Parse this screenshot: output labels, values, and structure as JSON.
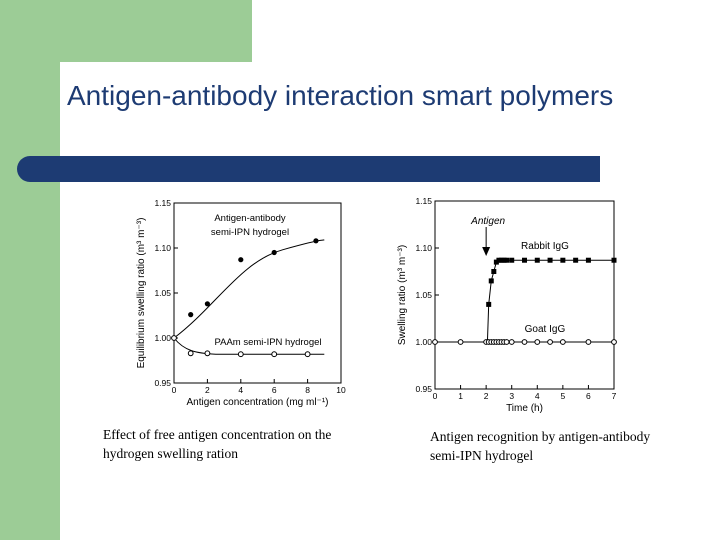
{
  "slide": {
    "title": "Antigen-antibody interaction smart polymers",
    "accent_color": "#1d3b73",
    "side_color": "#9ccc96"
  },
  "captions": {
    "left": "Effect of free antigen concentration on the hydrogen swelling ration",
    "right": "Antigen recognition by antigen-antibody semi-IPN hydrogel"
  },
  "chart_data": [
    {
      "type": "scatter",
      "title": "",
      "xlabel": "Antigen concentration (mg ml⁻¹)",
      "ylabel": "Equilibrium swelling ratio (m³ m⁻³)",
      "xlim": [
        0,
        10
      ],
      "ylim": [
        0.95,
        1.15
      ],
      "xticks": [
        "0",
        "2",
        "4",
        "6",
        "8",
        "10"
      ],
      "yticks": [
        "0.95",
        "1.00",
        "1.05",
        "1.10",
        "1.15"
      ],
      "grid": false,
      "series": [
        {
          "name": "Antigen-antibody semi-IPN hydrogel",
          "marker": "filled",
          "x": [
            0,
            1,
            2,
            4,
            6,
            8.5
          ],
          "y": [
            1.0,
            1.026,
            1.038,
            1.087,
            1.095,
            1.108
          ]
        },
        {
          "name": "PAAm semi-IPN hydrogel",
          "marker": "open",
          "x": [
            0,
            1,
            2,
            4,
            6,
            8
          ],
          "y": [
            1.0,
            0.983,
            0.983,
            0.982,
            0.982,
            0.982
          ]
        }
      ],
      "labels": [
        "Antigen-antibody",
        "semi-IPN hydrogel",
        "PAAm semi-IPN hydrogel"
      ]
    },
    {
      "type": "line",
      "title": "",
      "xlabel": "Time (h)",
      "ylabel": "Swelling ratio (m³ m⁻³)",
      "xlim": [
        0,
        7
      ],
      "ylim": [
        0.95,
        1.15
      ],
      "xticks": [
        "0",
        "1",
        "2",
        "3",
        "4",
        "5",
        "6",
        "7"
      ],
      "yticks": [
        "0.95",
        "1.00",
        "1.05",
        "1.10",
        "1.15"
      ],
      "grid": false,
      "annotation": "Antigen",
      "annotation_x": 2,
      "series": [
        {
          "name": "Rabbit IgG",
          "marker": "filled-square",
          "x": [
            2.1,
            2.2,
            2.3,
            2.4,
            2.5,
            2.6,
            2.7,
            2.8,
            3.0,
            3.5,
            4.0,
            4.5,
            5.0,
            5.5,
            6.0,
            7.0
          ],
          "y": [
            1.04,
            1.065,
            1.075,
            1.085,
            1.087,
            1.087,
            1.087,
            1.087,
            1.087,
            1.087,
            1.087,
            1.087,
            1.087,
            1.087,
            1.087,
            1.087
          ]
        },
        {
          "name": "Goat IgG",
          "marker": "open",
          "x": [
            0,
            1,
            2,
            2.1,
            2.2,
            2.3,
            2.4,
            2.5,
            2.6,
            2.7,
            2.8,
            3.0,
            3.5,
            4.0,
            4.5,
            5.0,
            6.0,
            7.0
          ],
          "y": [
            1.0,
            1.0,
            1.0,
            1.0,
            1.0,
            1.0,
            1.0,
            1.0,
            1.0,
            1.0,
            1.0,
            1.0,
            1.0,
            1.0,
            1.0,
            1.0,
            1.0,
            1.0
          ]
        }
      ]
    }
  ]
}
